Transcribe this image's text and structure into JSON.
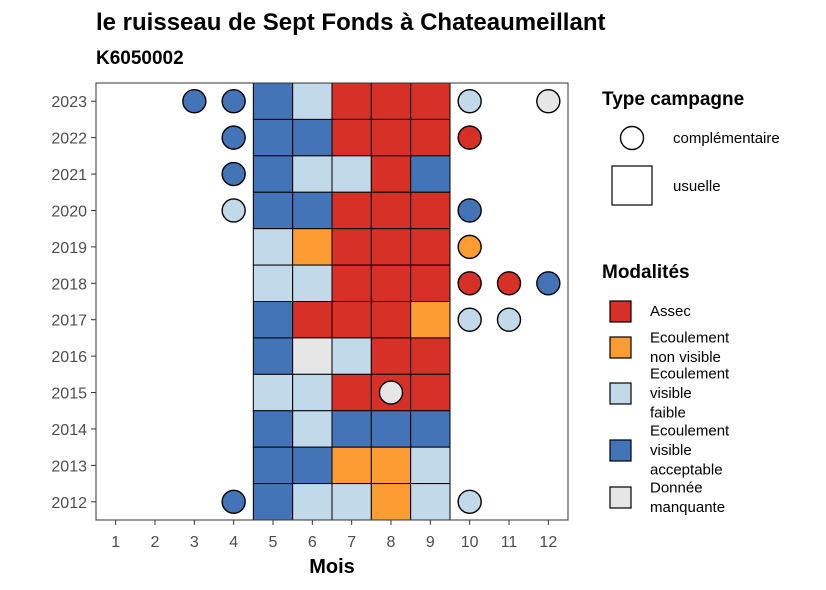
{
  "chart_data": {
    "type": "heatmap",
    "title": "le ruisseau de Sept Fonds à Chateaumeillant",
    "subtitle": "K6050002",
    "xlabel": "Mois",
    "ylabel": "",
    "x_ticks": [
      "1",
      "2",
      "3",
      "4",
      "5",
      "6",
      "7",
      "8",
      "9",
      "10",
      "11",
      "12"
    ],
    "y_ticks": [
      "2023",
      "2022",
      "2021",
      "2020",
      "2019",
      "2018",
      "2017",
      "2016",
      "2015",
      "2014",
      "2013",
      "2012"
    ],
    "xlim": [
      0.5,
      12.5
    ],
    "ylim": [
      2011.5,
      2023.5
    ],
    "grid": false,
    "legend_position": "right",
    "colors": {
      "Assec": "#d73027",
      "Ecoulement non visible": "#fd9c32",
      "Ecoulement visible faible": "#c2d9ea",
      "Ecoulement visible acceptable": "#4474b8",
      "Donnée manquante": "#e6e6e6"
    },
    "legend_campagne": {
      "title": "Type campagne",
      "items": [
        {
          "label": "complémentaire",
          "shape": "circle"
        },
        {
          "label": "usuelle",
          "shape": "square"
        }
      ]
    },
    "legend_modalites": {
      "title": "Modalités",
      "items": [
        {
          "key": "Assec",
          "lines": [
            "Assec"
          ]
        },
        {
          "key": "Ecoulement non visible",
          "lines": [
            "Ecoulement",
            "non visible"
          ]
        },
        {
          "key": "Ecoulement visible faible",
          "lines": [
            "Ecoulement",
            "visible",
            "faible"
          ]
        },
        {
          "key": "Ecoulement visible acceptable",
          "lines": [
            "Ecoulement",
            "visible",
            "acceptable"
          ]
        },
        {
          "key": "Donnée manquante",
          "lines": [
            "Donnée",
            "manquante"
          ]
        }
      ]
    },
    "usuelle": [
      {
        "year": 2023,
        "values": [
          "Ecoulement visible acceptable",
          "Ecoulement visible faible",
          "Assec",
          "Assec",
          "Assec"
        ]
      },
      {
        "year": 2022,
        "values": [
          "Ecoulement visible acceptable",
          "Ecoulement visible acceptable",
          "Assec",
          "Assec",
          "Assec"
        ]
      },
      {
        "year": 2021,
        "values": [
          "Ecoulement visible acceptable",
          "Ecoulement visible faible",
          "Ecoulement visible faible",
          "Assec",
          "Ecoulement visible acceptable"
        ]
      },
      {
        "year": 2020,
        "values": [
          "Ecoulement visible acceptable",
          "Ecoulement visible acceptable",
          "Assec",
          "Assec",
          "Assec"
        ]
      },
      {
        "year": 2019,
        "values": [
          "Ecoulement visible faible",
          "Ecoulement non visible",
          "Assec",
          "Assec",
          "Assec"
        ]
      },
      {
        "year": 2018,
        "values": [
          "Ecoulement visible faible",
          "Ecoulement visible faible",
          "Assec",
          "Assec",
          "Assec"
        ]
      },
      {
        "year": 2017,
        "values": [
          "Ecoulement visible acceptable",
          "Assec",
          "Assec",
          "Assec",
          "Ecoulement non visible"
        ]
      },
      {
        "year": 2016,
        "values": [
          "Ecoulement visible acceptable",
          "Donnée manquante",
          "Ecoulement visible faible",
          "Assec",
          "Assec"
        ]
      },
      {
        "year": 2015,
        "values": [
          "Ecoulement visible faible",
          "Ecoulement visible faible",
          "Assec",
          "Assec",
          "Assec"
        ]
      },
      {
        "year": 2014,
        "values": [
          "Ecoulement visible acceptable",
          "Ecoulement visible faible",
          "Ecoulement visible acceptable",
          "Ecoulement visible acceptable",
          "Ecoulement visible acceptable"
        ]
      },
      {
        "year": 2013,
        "values": [
          "Ecoulement visible acceptable",
          "Ecoulement visible acceptable",
          "Ecoulement non visible",
          "Ecoulement non visible",
          "Ecoulement visible faible"
        ]
      },
      {
        "year": 2012,
        "values": [
          "Ecoulement visible acceptable",
          "Ecoulement visible faible",
          "Ecoulement visible faible",
          "Ecoulement non visible",
          "Ecoulement visible faible"
        ]
      }
    ],
    "usuelle_months": [
      5,
      6,
      7,
      8,
      9
    ],
    "complementaire": [
      {
        "year": 2023,
        "month": 3,
        "value": "Ecoulement visible acceptable"
      },
      {
        "year": 2023,
        "month": 4,
        "value": "Ecoulement visible acceptable"
      },
      {
        "year": 2023,
        "month": 10,
        "value": "Ecoulement visible faible"
      },
      {
        "year": 2023,
        "month": 12,
        "value": "Donnée manquante"
      },
      {
        "year": 2022,
        "month": 4,
        "value": "Ecoulement visible acceptable"
      },
      {
        "year": 2022,
        "month": 10,
        "value": "Assec"
      },
      {
        "year": 2021,
        "month": 4,
        "value": "Ecoulement visible acceptable"
      },
      {
        "year": 2020,
        "month": 4,
        "value": "Ecoulement visible faible"
      },
      {
        "year": 2020,
        "month": 10,
        "value": "Ecoulement visible acceptable"
      },
      {
        "year": 2019,
        "month": 10,
        "value": "Ecoulement non visible"
      },
      {
        "year": 2018,
        "month": 10,
        "value": "Assec"
      },
      {
        "year": 2018,
        "month": 11,
        "value": "Assec"
      },
      {
        "year": 2018,
        "month": 12,
        "value": "Ecoulement visible acceptable"
      },
      {
        "year": 2017,
        "month": 10,
        "value": "Ecoulement visible faible"
      },
      {
        "year": 2017,
        "month": 11,
        "value": "Ecoulement visible faible"
      },
      {
        "year": 2015,
        "month": 8,
        "value": "Donnée manquante"
      },
      {
        "year": 2012,
        "month": 4,
        "value": "Ecoulement visible acceptable"
      },
      {
        "year": 2012,
        "month": 10,
        "value": "Ecoulement visible faible"
      }
    ]
  }
}
